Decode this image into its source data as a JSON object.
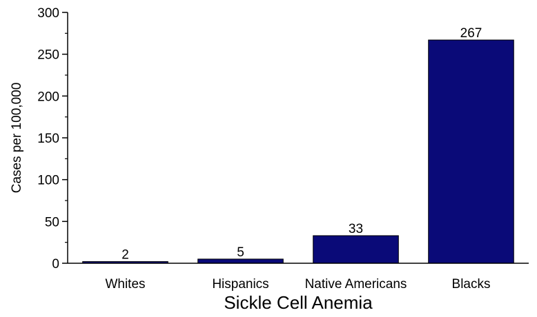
{
  "chart_data": {
    "type": "bar",
    "title": "",
    "xlabel": "Sickle Cell Anemia",
    "ylabel": "Cases per 100,000",
    "categories": [
      "Whites",
      "Hispanics",
      "Native Americans",
      "Blacks"
    ],
    "values": [
      2,
      5,
      33,
      267
    ],
    "data_labels": [
      "2",
      "5",
      "33",
      "267"
    ],
    "ylim": [
      0,
      300
    ],
    "yticks": [
      0,
      50,
      100,
      150,
      200,
      250,
      300
    ],
    "ytick_labels": [
      "0",
      "50",
      "100",
      "150",
      "200",
      "250",
      "300"
    ],
    "grid": false,
    "legend": "none",
    "bar_color": "#0a0a78"
  }
}
